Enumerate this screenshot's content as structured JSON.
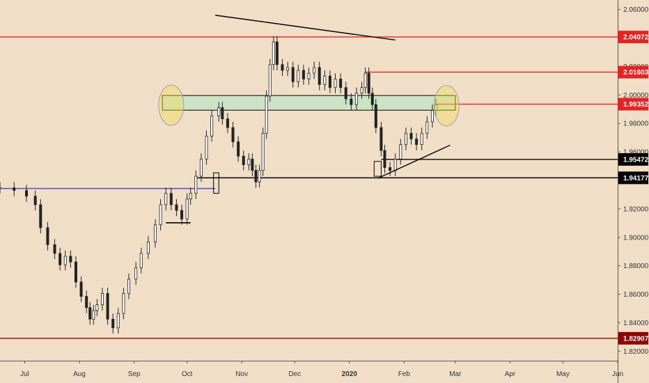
{
  "chart_data": {
    "type": "candlestick",
    "title": "",
    "xlabel": "",
    "ylabel": "",
    "x_dates": {
      "start": "2019-06-17",
      "end": "2020-06-01"
    },
    "ylim": [
      1.8133,
      2.0667
    ],
    "x_tick_labels": [
      {
        "label": "Jul",
        "date": "2019-07-01"
      },
      {
        "label": "Aug",
        "date": "2019-08-01"
      },
      {
        "label": "Sep",
        "date": "2019-09-01"
      },
      {
        "label": "Oct",
        "date": "2019-10-01"
      },
      {
        "label": "Nov",
        "date": "2019-11-01"
      },
      {
        "label": "Dec",
        "date": "2019-12-01"
      },
      {
        "label": "2020",
        "date": "2020-01-01",
        "bold": true
      },
      {
        "label": "Feb",
        "date": "2020-02-01"
      },
      {
        "label": "Mar",
        "date": "2020-03-01"
      },
      {
        "label": "Apr",
        "date": "2020-04-01"
      },
      {
        "label": "May",
        "date": "2020-05-01"
      },
      {
        "label": "Jun",
        "date": "2020-06-01"
      }
    ],
    "y_tick_labels": [
      "2.06000",
      "2.04000",
      "2.02000",
      "2.00000",
      "1.98000",
      "1.96000",
      "1.94000",
      "1.92000",
      "1.90000",
      "1.88000",
      "1.86000",
      "1.84000",
      "1.82000"
    ],
    "y_ticks": [
      2.06,
      2.04,
      2.02,
      2.0,
      1.98,
      1.96,
      1.94,
      1.92,
      1.9,
      1.88,
      1.86,
      1.84,
      1.82
    ],
    "price_series": [
      [
        "2019-06-17",
        1.9348
      ],
      [
        "2019-06-25",
        1.9329
      ],
      [
        "2019-07-02",
        1.9289
      ],
      [
        "2019-07-07",
        1.9229
      ],
      [
        "2019-07-10",
        1.9068
      ],
      [
        "2019-07-14",
        1.8948
      ],
      [
        "2019-07-18",
        1.8887
      ],
      [
        "2019-07-21",
        1.8807
      ],
      [
        "2019-07-24",
        1.8867
      ],
      [
        "2019-07-27",
        1.8827
      ],
      [
        "2019-07-30",
        1.8686
      ],
      [
        "2019-08-02",
        1.8585
      ],
      [
        "2019-08-05",
        1.8506
      ],
      [
        "2019-08-07",
        1.8425
      ],
      [
        "2019-08-09",
        1.8485
      ],
      [
        "2019-08-11",
        1.8526
      ],
      [
        "2019-08-14",
        1.8606
      ],
      [
        "2019-08-17",
        1.8425
      ],
      [
        "2019-08-20",
        1.8364
      ],
      [
        "2019-08-23",
        1.8465
      ],
      [
        "2019-08-26",
        1.8606
      ],
      [
        "2019-08-29",
        1.8706
      ],
      [
        "2019-09-02",
        1.8787
      ],
      [
        "2019-09-05",
        1.8887
      ],
      [
        "2019-09-09",
        1.8968
      ],
      [
        "2019-09-13",
        1.9088
      ],
      [
        "2019-09-16",
        1.9229
      ],
      [
        "2019-09-19",
        1.9309
      ],
      [
        "2019-09-22",
        1.9229
      ],
      [
        "2019-09-25",
        1.9189
      ],
      [
        "2019-09-28",
        1.9128
      ],
      [
        "2019-10-01",
        1.9269
      ],
      [
        "2019-10-03",
        1.9309
      ],
      [
        "2019-10-06",
        1.9429
      ],
      [
        "2019-10-09",
        1.955
      ],
      [
        "2019-10-12",
        1.9711
      ],
      [
        "2019-10-15",
        1.9852
      ],
      [
        "2019-10-19",
        1.9911
      ],
      [
        "2019-10-21",
        1.9832
      ],
      [
        "2019-10-24",
        1.9771
      ],
      [
        "2019-10-27",
        1.9671
      ],
      [
        "2019-10-30",
        1.957
      ],
      [
        "2019-11-02",
        1.951
      ],
      [
        "2019-11-05",
        1.955
      ],
      [
        "2019-11-07",
        1.947
      ],
      [
        "2019-11-09",
        1.9389
      ],
      [
        "2019-11-11",
        1.947
      ],
      [
        "2019-11-13",
        1.9731
      ],
      [
        "2019-11-15",
        1.9992
      ],
      [
        "2019-11-17",
        2.0213
      ],
      [
        "2019-11-19",
        2.0373
      ],
      [
        "2019-11-21",
        2.0213
      ],
      [
        "2019-11-24",
        2.0173
      ],
      [
        "2019-11-27",
        2.0193
      ],
      [
        "2019-11-30",
        2.0093
      ],
      [
        "2019-12-03",
        2.0173
      ],
      [
        "2019-12-06",
        2.0112
      ],
      [
        "2019-12-09",
        2.0153
      ],
      [
        "2019-12-12",
        2.0193
      ],
      [
        "2019-12-15",
        2.0073
      ],
      [
        "2019-12-18",
        2.0133
      ],
      [
        "2019-12-21",
        2.0052
      ],
      [
        "2019-12-24",
        2.0112
      ],
      [
        "2019-12-27",
        2.0052
      ],
      [
        "2019-12-30",
        1.9972
      ],
      [
        "2020-01-02",
        1.9932
      ],
      [
        "2020-01-05",
        2.0012
      ],
      [
        "2020-01-08",
        2.0052
      ],
      [
        "2020-01-10",
        2.0153
      ],
      [
        "2020-01-12",
        2.0012
      ],
      [
        "2020-01-14",
        1.9932
      ],
      [
        "2020-01-16",
        1.9771
      ],
      [
        "2020-01-19",
        1.961
      ],
      [
        "2020-01-21",
        1.949
      ],
      [
        "2020-01-24",
        1.947
      ],
      [
        "2020-01-27",
        1.955
      ],
      [
        "2020-01-30",
        1.9651
      ],
      [
        "2020-02-02",
        1.9731
      ],
      [
        "2020-02-05",
        1.9691
      ],
      [
        "2020-02-08",
        1.9651
      ],
      [
        "2020-02-11",
        1.9731
      ],
      [
        "2020-02-14",
        1.9811
      ],
      [
        "2020-02-17",
        1.9892
      ],
      [
        "2020-02-19",
        1.9932
      ]
    ],
    "horizontal_levels": [
      {
        "value": 2.04072,
        "label": "2.04072",
        "color": "#e62222",
        "badge_bg": "#e62222",
        "badge_fg": "#ffffff",
        "from_date": "2019-06-17"
      },
      {
        "value": 2.01603,
        "label": "2.01603",
        "color": "#e62222",
        "badge_bg": "#e62222",
        "badge_fg": "#ffffff",
        "from_date": "2020-01-10"
      },
      {
        "value": 1.99352,
        "label": "1.99352",
        "color": "#e62222",
        "badge_bg": "#e62222",
        "badge_fg": "#ffffff",
        "from_date": "2020-02-19"
      },
      {
        "value": 1.95472,
        "label": "1.95472",
        "color": "#000000",
        "badge_bg": "#000000",
        "badge_fg": "#ffffff",
        "from_date": "2020-01-19"
      },
      {
        "value": 1.94177,
        "label": "1.94177",
        "color": "#000000",
        "badge_bg": "#000000",
        "badge_fg": "#ffffff",
        "from_date": "2019-10-06"
      },
      {
        "value": 1.82907,
        "label": "1.82907",
        "color": "#8b0000",
        "badge_bg": "#8b0000",
        "badge_fg": "#ffffff",
        "from_date": "2019-06-17"
      }
    ],
    "support_segments": [
      {
        "y": 1.9343,
        "from": "2019-06-17",
        "to": "2019-10-17",
        "color": "#5b5bb8"
      },
      {
        "y": 1.9102,
        "from": "2019-09-19",
        "to": "2019-10-03",
        "color": "#000000"
      }
    ],
    "trendlines": [
      {
        "from": [
          "2019-10-17",
          2.056
        ],
        "to": [
          "2020-01-27",
          2.0386
        ],
        "color": "#000000"
      },
      {
        "from": [
          "2020-01-17",
          1.9414
        ],
        "to": [
          "2020-02-27",
          1.9647
        ],
        "color": "#000000"
      }
    ],
    "zone": {
      "from": "2019-09-17",
      "to": "2020-03-01",
      "top": 1.9996,
      "bottom": 1.9893,
      "fill": "#cde3c6",
      "stroke": "#000000"
    },
    "highlight_circles": [
      {
        "date": "2019-09-22",
        "value": 1.9928
      },
      {
        "date": "2020-02-25",
        "value": 1.9924
      }
    ],
    "markers": [
      {
        "from": "2019-10-16",
        "to": "2019-10-19",
        "top": 1.9453,
        "bottom": 1.9309
      },
      {
        "from": "2020-01-15",
        "to": "2020-01-19",
        "top": 1.9533,
        "bottom": 1.9429
      }
    ],
    "colors": {
      "background": "#f0dfc6",
      "candle": "#222222",
      "axis_text": "#333333"
    }
  }
}
